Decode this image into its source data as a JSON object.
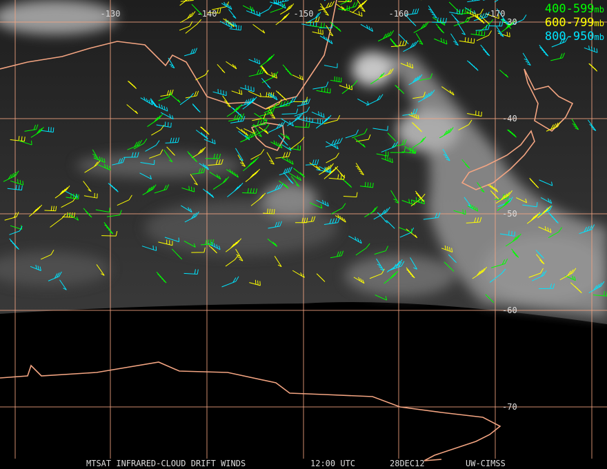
{
  "map": {
    "longitude_labels": [
      "-130",
      "-140",
      "-150",
      "-160",
      "-170"
    ],
    "latitude_labels": [
      "-30",
      "-40",
      "-50",
      "-60",
      "-70"
    ],
    "legend": [
      {
        "label": "400-599",
        "unit": "mb",
        "color": "#00ff00"
      },
      {
        "label": "600-799",
        "unit": "mb",
        "color": "#ffff00"
      },
      {
        "label": "800-950",
        "unit": "mb",
        "color": "#00e5ff"
      }
    ],
    "footer": [
      "MTSAT INFRARED-CLOUD DRIFT WINDS",
      "12:00 UTC",
      "28DEC12",
      "UW-CIMSS"
    ]
  }
}
